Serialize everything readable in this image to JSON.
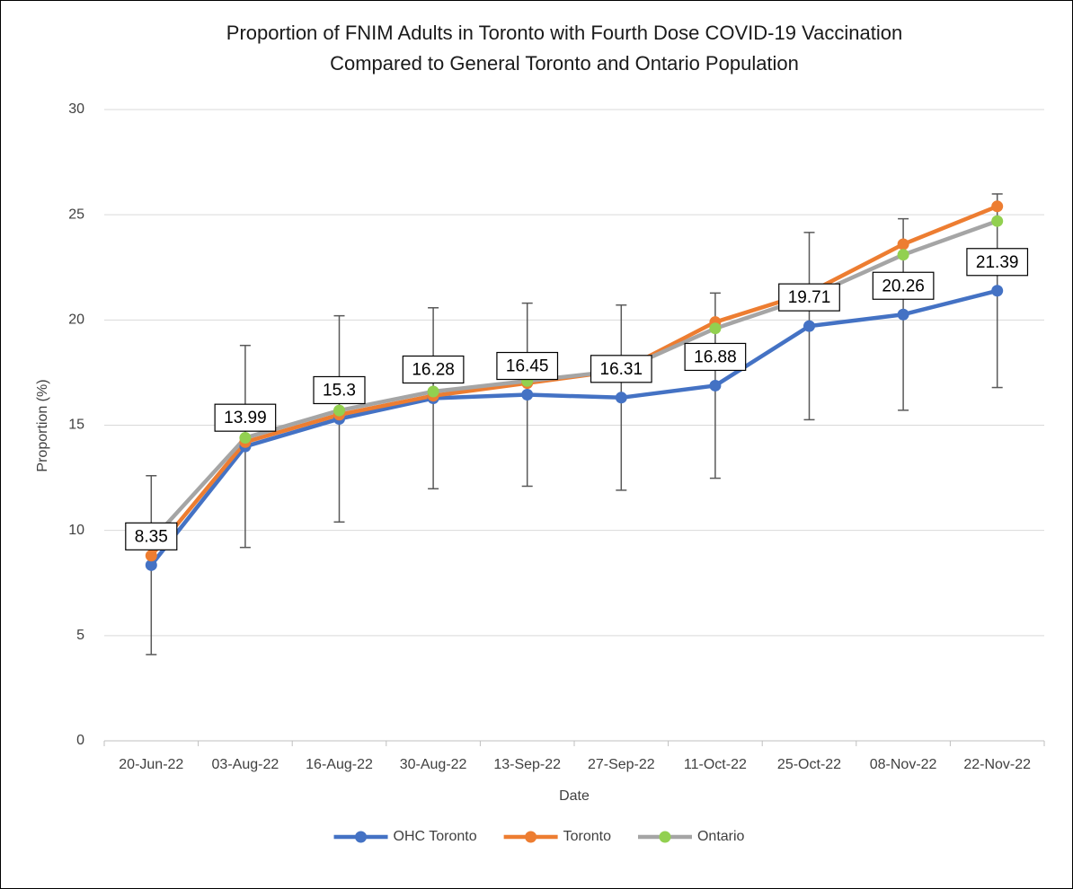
{
  "chart_data": {
    "type": "line",
    "title": [
      "Proportion of FNIM Adults in Toronto with Fourth Dose COVID-19 Vaccination",
      "Compared to General Toronto and Ontario Population"
    ],
    "x_label": "Date",
    "y_label": "Proportion (%)",
    "categories": [
      "20-Jun-22",
      "03-Aug-22",
      "16-Aug-22",
      "30-Aug-22",
      "13-Sep-22",
      "27-Sep-22",
      "11-Oct-22",
      "25-Oct-22",
      "08-Nov-22",
      "22-Nov-22"
    ],
    "series": [
      {
        "name": "OHC Toronto",
        "color": "#4472c4",
        "marker_color": "#4472c4",
        "values": [
          8.35,
          13.99,
          15.3,
          16.28,
          16.45,
          16.31,
          16.88,
          19.71,
          20.26,
          21.39
        ],
        "errors": [
          4.25,
          4.8,
          4.9,
          4.3,
          4.35,
          4.4,
          4.4,
          4.45,
          4.55,
          4.6
        ],
        "data_labels": true
      },
      {
        "name": "Toronto",
        "color": "#ed7d31",
        "marker_color": "#ed7d31",
        "values": [
          8.8,
          14.2,
          15.5,
          16.4,
          17.0,
          17.6,
          19.9,
          21.3,
          23.6,
          25.4
        ]
      },
      {
        "name": "Ontario",
        "color": "#a5a5a5",
        "marker_color": "#92d050",
        "values": [
          9.5,
          14.4,
          15.7,
          16.6,
          17.1,
          17.6,
          19.6,
          21.1,
          23.1,
          24.7
        ]
      }
    ],
    "ylim": [
      0,
      30
    ],
    "yticks": [
      0,
      5,
      10,
      15,
      20,
      25,
      30
    ],
    "grid": true,
    "legend": "bottom"
  }
}
